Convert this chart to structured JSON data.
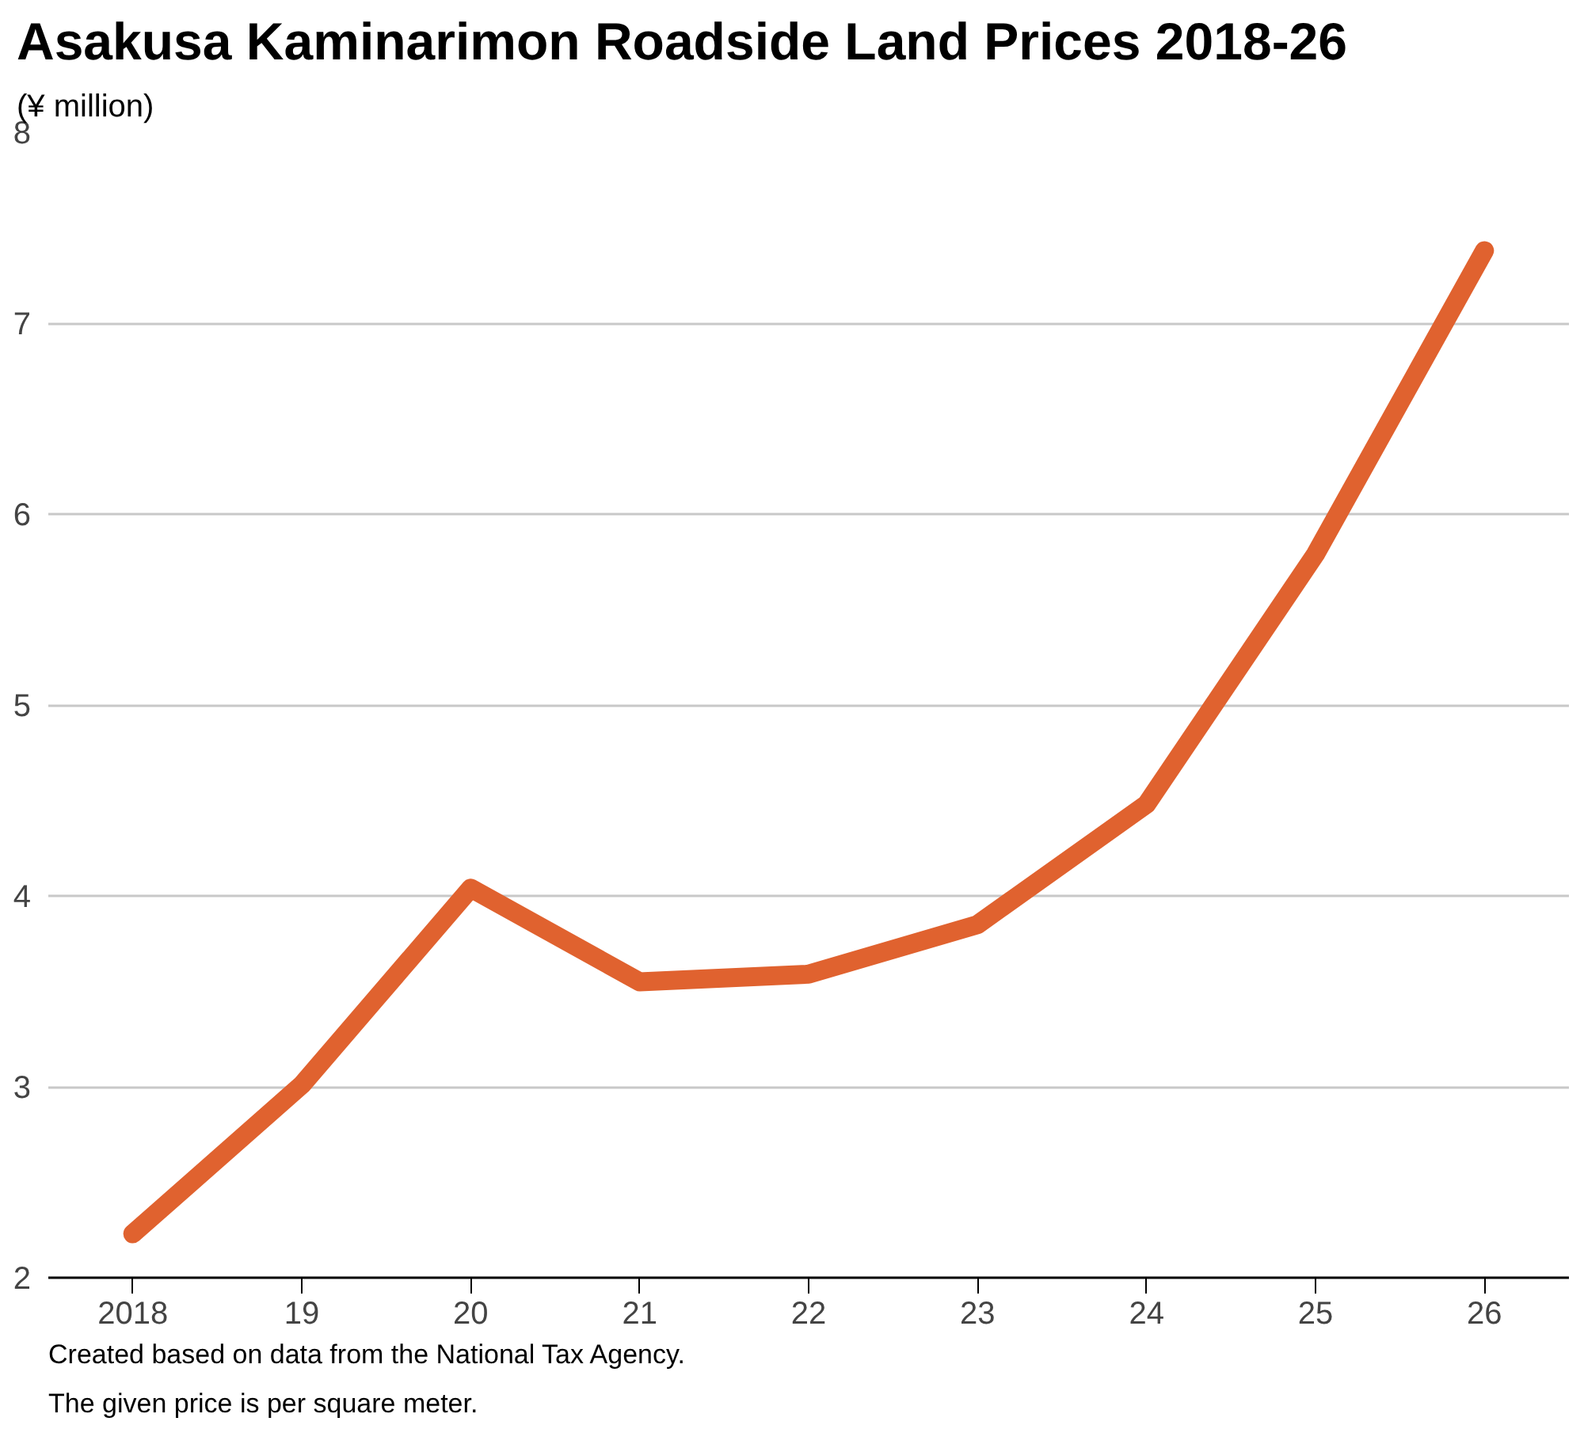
{
  "chart_data": {
    "type": "line",
    "title": "Asakusa Kaminarimon Roadside Land Prices 2018-26",
    "ylabel": "(¥ million)",
    "categories": [
      "2018",
      "19",
      "20",
      "21",
      "22",
      "23",
      "24",
      "25",
      "26"
    ],
    "series": [
      {
        "color": "#e0622f",
        "values": [
          2.23,
          3.01,
          4.04,
          3.55,
          3.59,
          3.85,
          4.48,
          5.79,
          7.38
        ]
      }
    ],
    "ylim": [
      2,
      8
    ],
    "yticks": [
      2,
      3,
      4,
      5,
      6,
      7,
      8
    ],
    "grid": "y",
    "marker": "none",
    "line_style": "solid",
    "annotations": [
      "Created based on data from the National Tax Agency.",
      "The given price is per square meter."
    ]
  }
}
